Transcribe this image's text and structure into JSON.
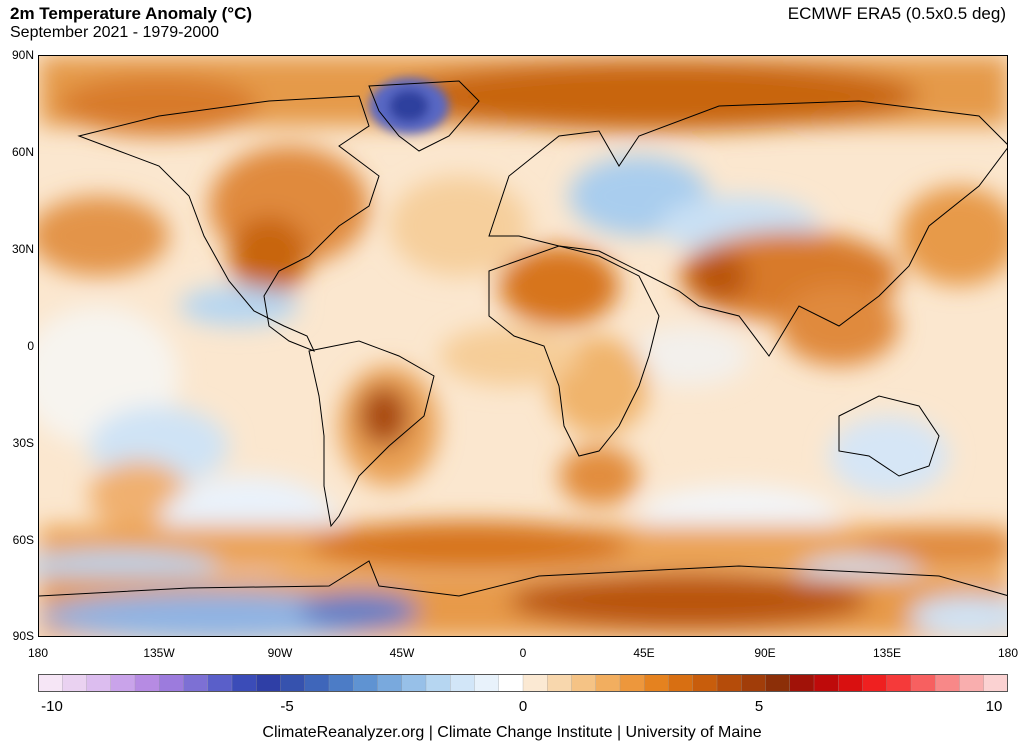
{
  "header": {
    "title": "2m Temperature Anomaly (°C)",
    "subtitle": "September 2021 - 1979-2000",
    "source": "ECMWF ERA5 (0.5x0.5 deg)"
  },
  "map": {
    "lat_labels": [
      "90N",
      "60N",
      "30N",
      "0",
      "30S",
      "60S",
      "90S"
    ],
    "lon_labels": [
      "180",
      "135W",
      "90W",
      "45W",
      "0",
      "45E",
      "90E",
      "135E",
      "180"
    ]
  },
  "colorbar": {
    "min": -10,
    "max": 10,
    "tick_labels": [
      "-10",
      "-5",
      "0",
      "5",
      "10"
    ],
    "colors": [
      "#f6e6f6",
      "#ead2f1",
      "#dcbdef",
      "#c9a3ea",
      "#b68be3",
      "#9c7bdd",
      "#7d70d4",
      "#5a5fc9",
      "#3b4cb8",
      "#2f3fa6",
      "#3652ae",
      "#3f66ba",
      "#4c7cc6",
      "#5f93d2",
      "#79a9dd",
      "#97c0e8",
      "#b6d6f1",
      "#d2e6f8",
      "#e8f2fb",
      "#ffffff",
      "#fbe9d3",
      "#f8d7ad",
      "#f5c385",
      "#f2ae5f",
      "#ed973c",
      "#e5821f",
      "#d86f12",
      "#c85d0c",
      "#b54c0a",
      "#a13d09",
      "#8c2f08",
      "#a11208",
      "#be0a0a",
      "#d91010",
      "#ef2020",
      "#f53a3a",
      "#f76060",
      "#f88888",
      "#f9aeae",
      "#fbd2d2"
    ]
  },
  "footer": "ClimateReanalyzer.org | Climate Change Institute | University of Maine"
}
